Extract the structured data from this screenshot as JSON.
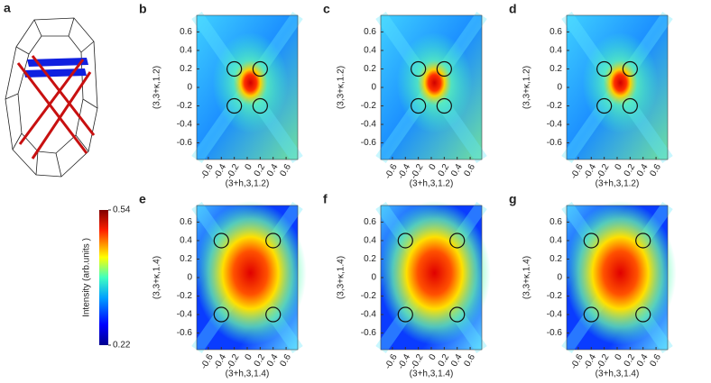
{
  "chart_data": [
    {
      "type": "diagram",
      "label": "a"
    },
    {
      "type": "heatmap",
      "label": "b",
      "xlabel": "(3+h,3,1.2)",
      "ylabel": "(3,3+κ,1.2)",
      "xlim": [
        -0.78,
        0.78
      ],
      "ylim": [
        -0.78,
        0.78
      ],
      "xticks": [
        -0.6,
        -0.4,
        -0.2,
        0,
        0.2,
        0.4,
        0.6
      ],
      "yticks": [
        -0.6,
        -0.4,
        -0.2,
        0,
        0.2,
        0.4,
        0.6
      ],
      "markers": {
        "x": [
          -0.2,
          0.2,
          -0.2,
          0.2
        ],
        "y": [
          0.2,
          0.2,
          -0.2,
          -0.2
        ]
      }
    },
    {
      "type": "heatmap",
      "label": "c",
      "xlabel": "(3+h,3,1.2)",
      "ylabel": "(3,3+κ,1.2)",
      "xlim": [
        -0.78,
        0.78
      ],
      "ylim": [
        -0.78,
        0.78
      ],
      "xticks": [
        -0.6,
        -0.4,
        -0.2,
        0,
        0.2,
        0.4,
        0.6
      ],
      "yticks": [
        -0.6,
        -0.4,
        -0.2,
        0,
        0.2,
        0.4,
        0.6
      ],
      "markers": {
        "x": [
          -0.2,
          0.2,
          -0.2,
          0.2
        ],
        "y": [
          0.2,
          0.2,
          -0.2,
          -0.2
        ]
      }
    },
    {
      "type": "heatmap",
      "label": "d",
      "xlabel": "(3+h,3,1.2)",
      "ylabel": "(3,3+κ,1.2)",
      "xlim": [
        -0.78,
        0.78
      ],
      "ylim": [
        -0.78,
        0.78
      ],
      "xticks": [
        -0.6,
        -0.4,
        -0.2,
        0,
        0.2,
        0.4,
        0.6
      ],
      "yticks": [
        -0.6,
        -0.4,
        -0.2,
        0,
        0.2,
        0.4,
        0.6
      ],
      "markers": {
        "x": [
          -0.2,
          0.2,
          -0.2,
          0.2
        ],
        "y": [
          0.2,
          0.2,
          -0.2,
          -0.2
        ]
      }
    },
    {
      "type": "heatmap",
      "label": "e",
      "xlabel": "(3+h,3,1.4)",
      "ylabel": "(3,3+κ,1.4)",
      "xlim": [
        -0.78,
        0.78
      ],
      "ylim": [
        -0.78,
        0.78
      ],
      "xticks": [
        -0.6,
        -0.4,
        -0.2,
        0,
        0.2,
        0.4,
        0.6
      ],
      "yticks": [
        -0.6,
        -0.4,
        -0.2,
        0,
        0.2,
        0.4,
        0.6
      ],
      "markers": {
        "x": [
          -0.4,
          0.4,
          -0.4,
          0.4
        ],
        "y": [
          0.4,
          0.4,
          -0.4,
          -0.4
        ]
      }
    },
    {
      "type": "heatmap",
      "label": "f",
      "xlabel": "(3+h,3,1.4)",
      "ylabel": "(3,3+κ,1.4)",
      "xlim": [
        -0.78,
        0.78
      ],
      "ylim": [
        -0.78,
        0.78
      ],
      "xticks": [
        -0.6,
        -0.4,
        -0.2,
        0,
        0.2,
        0.4,
        0.6
      ],
      "yticks": [
        -0.6,
        -0.4,
        -0.2,
        0,
        0.2,
        0.4,
        0.6
      ],
      "markers": {
        "x": [
          -0.4,
          0.4,
          -0.4,
          0.4
        ],
        "y": [
          0.4,
          0.4,
          -0.4,
          -0.4
        ]
      }
    },
    {
      "type": "heatmap",
      "label": "g",
      "xlabel": "(3+h,3,1.4)",
      "ylabel": "(3,3+κ,1.4)",
      "xlim": [
        -0.78,
        0.78
      ],
      "ylim": [
        -0.78,
        0.78
      ],
      "xticks": [
        -0.6,
        -0.4,
        -0.2,
        0,
        0.2,
        0.4,
        0.6
      ],
      "yticks": [
        -0.6,
        -0.4,
        -0.2,
        0,
        0.2,
        0.4,
        0.6
      ],
      "markers": {
        "x": [
          -0.4,
          0.4,
          -0.4,
          0.4
        ],
        "y": [
          0.4,
          0.4,
          -0.4,
          -0.4
        ]
      }
    },
    {
      "type": "colorbar",
      "label": "Intensity (arb.units )",
      "clim": [
        0.22,
        0.54
      ],
      "cticks": [
        0.22,
        0.54
      ]
    }
  ]
}
